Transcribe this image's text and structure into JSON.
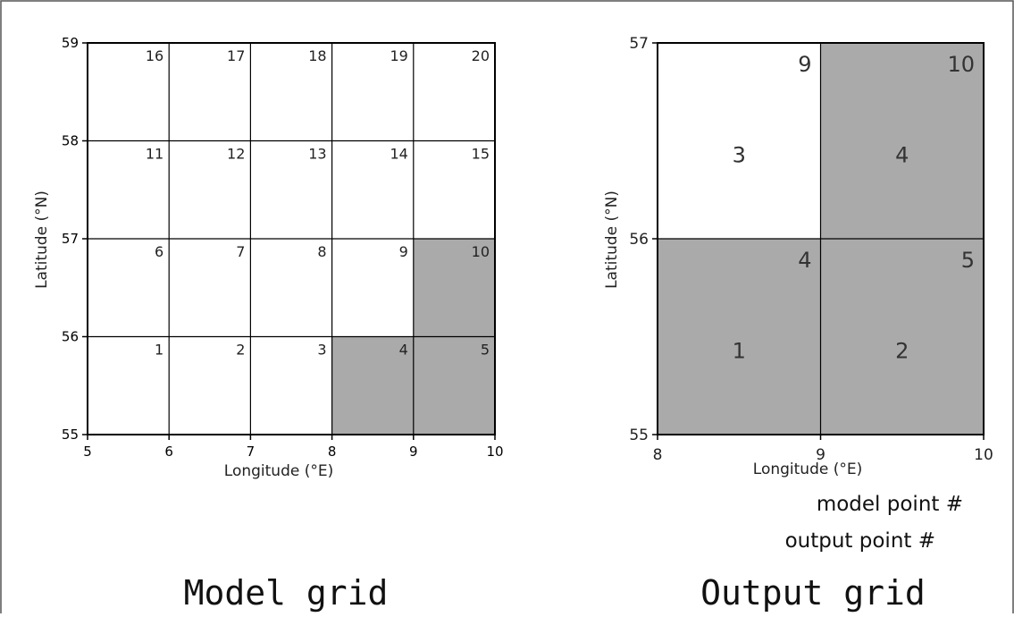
{
  "left_panel": {
    "title": "Model grid",
    "xlabel": "Longitude (°E)",
    "ylabel": "Latitude (°N)",
    "xticks": [
      "5",
      "6",
      "7",
      "8",
      "9",
      "10"
    ],
    "yticks": [
      "55",
      "56",
      "57",
      "58",
      "59"
    ],
    "xrange": [
      5,
      10
    ],
    "yrange": [
      55,
      59
    ],
    "cells": [
      {
        "lon": 5,
        "lat": 55,
        "n": "1",
        "shaded": false
      },
      {
        "lon": 6,
        "lat": 55,
        "n": "2",
        "shaded": false
      },
      {
        "lon": 7,
        "lat": 55,
        "n": "3",
        "shaded": false
      },
      {
        "lon": 8,
        "lat": 55,
        "n": "4",
        "shaded": true
      },
      {
        "lon": 9,
        "lat": 55,
        "n": "5",
        "shaded": true
      },
      {
        "lon": 5,
        "lat": 56,
        "n": "6",
        "shaded": false
      },
      {
        "lon": 6,
        "lat": 56,
        "n": "7",
        "shaded": false
      },
      {
        "lon": 7,
        "lat": 56,
        "n": "8",
        "shaded": false
      },
      {
        "lon": 8,
        "lat": 56,
        "n": "9",
        "shaded": false
      },
      {
        "lon": 9,
        "lat": 56,
        "n": "10",
        "shaded": true
      },
      {
        "lon": 5,
        "lat": 57,
        "n": "11",
        "shaded": false
      },
      {
        "lon": 6,
        "lat": 57,
        "n": "12",
        "shaded": false
      },
      {
        "lon": 7,
        "lat": 57,
        "n": "13",
        "shaded": false
      },
      {
        "lon": 8,
        "lat": 57,
        "n": "14",
        "shaded": false
      },
      {
        "lon": 9,
        "lat": 57,
        "n": "15",
        "shaded": false
      },
      {
        "lon": 5,
        "lat": 58,
        "n": "16",
        "shaded": false
      },
      {
        "lon": 6,
        "lat": 58,
        "n": "17",
        "shaded": false
      },
      {
        "lon": 7,
        "lat": 58,
        "n": "18",
        "shaded": false
      },
      {
        "lon": 8,
        "lat": 58,
        "n": "19",
        "shaded": false
      },
      {
        "lon": 9,
        "lat": 58,
        "n": "20",
        "shaded": false
      }
    ]
  },
  "right_panel": {
    "title": "Output grid",
    "xlabel": "Longitude (°E)",
    "ylabel": "Latitude (°N)",
    "xticks": [
      "8",
      "9",
      "10"
    ],
    "yticks": [
      "55",
      "56",
      "57"
    ],
    "xrange": [
      8,
      10
    ],
    "yrange": [
      55,
      57
    ],
    "cells": [
      {
        "lon": 8,
        "lat": 55,
        "model_n": "4",
        "output_n": "1",
        "shaded": true
      },
      {
        "lon": 9,
        "lat": 55,
        "model_n": "5",
        "output_n": "2",
        "shaded": true
      },
      {
        "lon": 8,
        "lat": 56,
        "model_n": "9",
        "output_n": "3",
        "shaded": false
      },
      {
        "lon": 9,
        "lat": 56,
        "model_n": "10",
        "output_n": "4",
        "shaded": true
      }
    ]
  },
  "legend": {
    "model_point": "model point #",
    "output_point": "output point #"
  },
  "colors": {
    "shade": "#aaaaaa",
    "line": "#000000",
    "frame": "#555555"
  }
}
